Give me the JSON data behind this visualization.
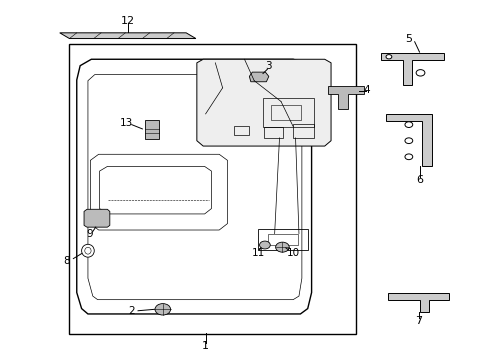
{
  "bg_color": "#ffffff",
  "line_color": "#000000",
  "text_color": "#000000",
  "figsize": [
    4.89,
    3.6
  ],
  "dpi": 100
}
